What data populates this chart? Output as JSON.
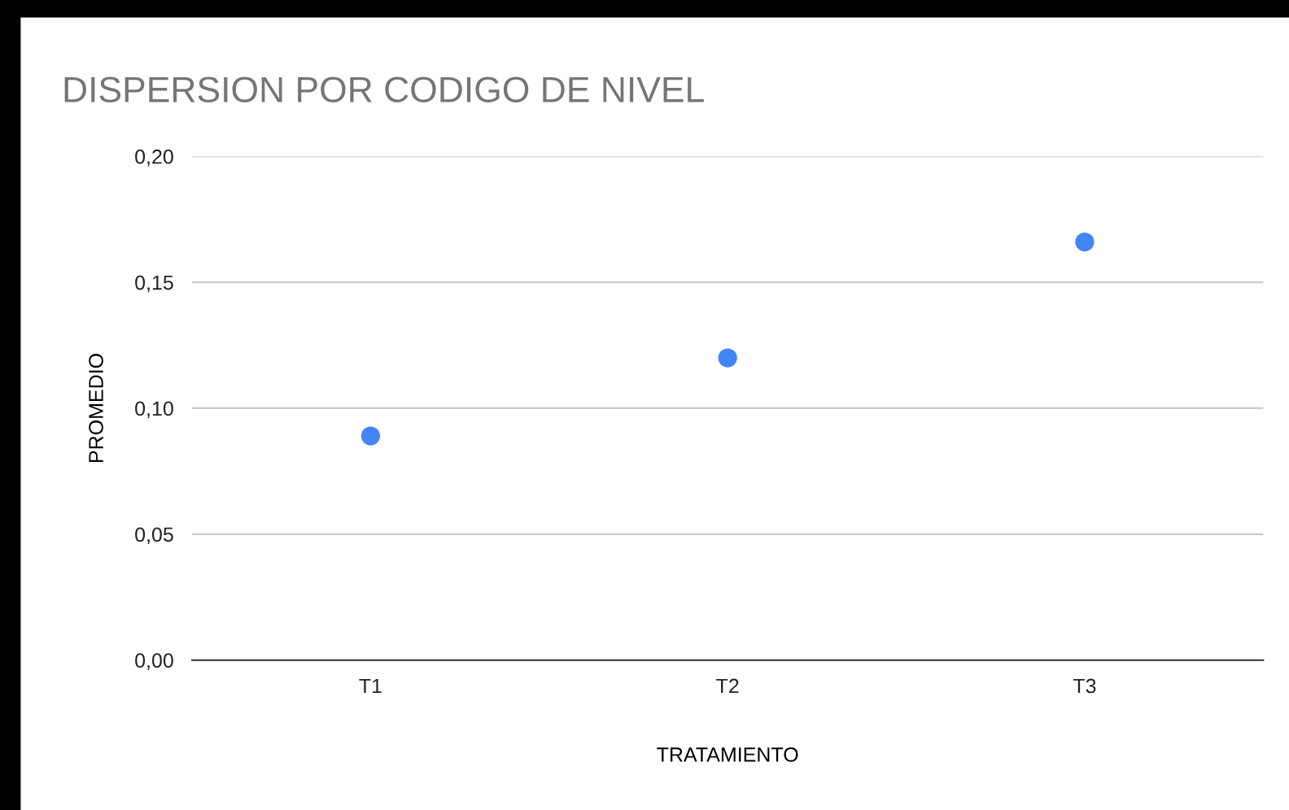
{
  "chart_data": {
    "type": "scatter",
    "title": "DISPERSION POR CODIGO DE NIVEL",
    "xlabel": "TRATAMIENTO",
    "ylabel": "PROMEDIO",
    "categories": [
      "T1",
      "T2",
      "T3"
    ],
    "series": [
      {
        "color": "#4285f4",
        "values": [
          0.089,
          0.12,
          0.166
        ]
      }
    ],
    "ylim": [
      0,
      0.2
    ],
    "yticks": [
      {
        "value": 0,
        "label": "0,00"
      },
      {
        "value": 0.05,
        "label": "0,05"
      },
      {
        "value": 0.1,
        "label": "0,10"
      },
      {
        "value": 0.15,
        "label": "0,15"
      },
      {
        "value": 0.2,
        "label": "0,20"
      }
    ],
    "grid": "y",
    "marker": "circle",
    "legend": false
  }
}
